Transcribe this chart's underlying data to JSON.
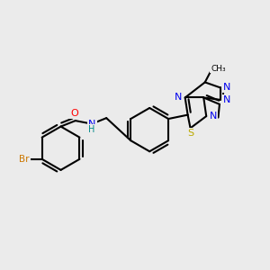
{
  "bg_color": "#ebebeb",
  "bond_color": "#000000",
  "O_color": "#ff0000",
  "N_color": "#0000ee",
  "S_color": "#bbaa00",
  "Br_color": "#cc7700",
  "NH_color": "#008888",
  "line_width": 1.5,
  "figsize": [
    3.0,
    3.0
  ],
  "dpi": 100,
  "xlim": [
    0,
    10
  ],
  "ylim": [
    0,
    10
  ]
}
